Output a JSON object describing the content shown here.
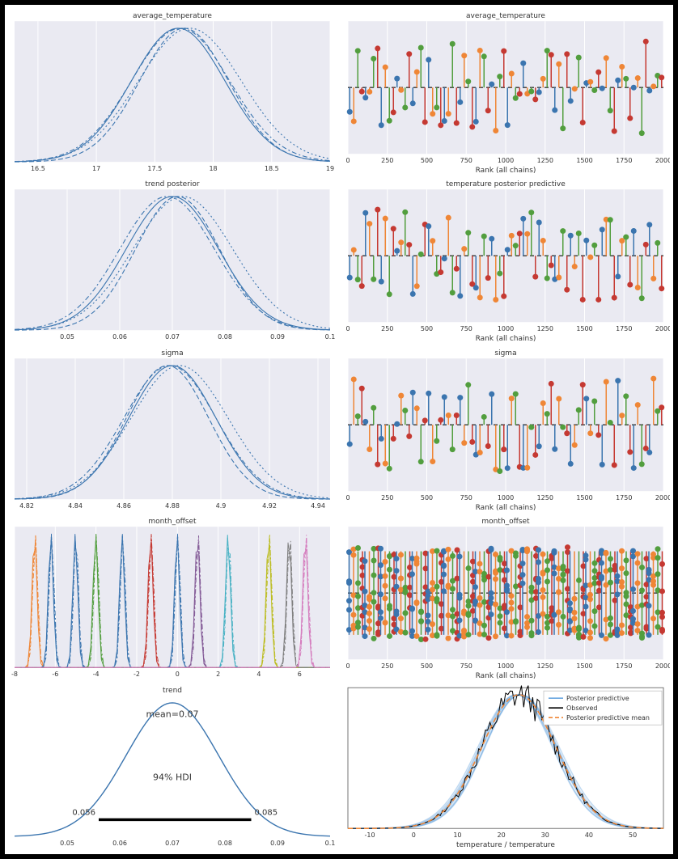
{
  "global": {
    "font_family": "DejaVu Sans, Arial, sans-serif",
    "title_fontsize": 9,
    "tick_fontsize": 8,
    "axis_label_fontsize": 9,
    "plot_bg": "#eaeaf2",
    "plain_bg": "#ffffff",
    "grid_color": "#ffffff",
    "tick_color": "#333333",
    "text_color": "#333333"
  },
  "kde_colors": {
    "solid": "#3b75af",
    "dashed": "#3b75af",
    "dotted": "#3b75af",
    "dashdot": "#3b75af"
  },
  "kde_avg_temp": {
    "title": "average_temperature",
    "xlim": [
      16.3,
      19.0
    ],
    "xticks": [
      16.5,
      17.0,
      17.5,
      18.0,
      18.5,
      19.0
    ],
    "mu": [
      17.7,
      17.75,
      17.8,
      17.72
    ],
    "sigma": [
      0.4,
      0.38,
      0.44,
      0.42
    ]
  },
  "kde_trend": {
    "title": "trend posterior",
    "xlim": [
      0.04,
      0.1
    ],
    "xticks": [
      0.05,
      0.06,
      0.07,
      0.08,
      0.09,
      0.1
    ],
    "mu": [
      0.07,
      0.071,
      0.072,
      0.069
    ],
    "sigma": [
      0.0088,
      0.008,
      0.0095,
      0.009
    ]
  },
  "kde_sigma": {
    "title": "sigma",
    "xlim": [
      4.815,
      4.945
    ],
    "xticks": [
      4.82,
      4.84,
      4.86,
      4.88,
      4.9,
      4.92,
      4.94
    ],
    "mu": [
      4.88,
      4.878,
      4.883,
      4.879
    ],
    "sigma": [
      0.018,
      0.017,
      0.02,
      0.019
    ]
  },
  "month_offset": {
    "title": "month_offset",
    "xlim": [
      -8,
      7.5
    ],
    "xticks": [
      -8,
      -6,
      -4,
      -2,
      0,
      2,
      4,
      6
    ],
    "peaks": [
      {
        "mu": -7.0,
        "color": "#ef8636",
        "sigma": 0.12
      },
      {
        "mu": -6.2,
        "color": "#3b75af",
        "sigma": 0.12
      },
      {
        "mu": -5.0,
        "color": "#3b75af",
        "sigma": 0.12
      },
      {
        "mu": -4.0,
        "color": "#529e3e",
        "sigma": 0.12
      },
      {
        "mu": -2.7,
        "color": "#3b75af",
        "sigma": 0.12
      },
      {
        "mu": -1.3,
        "color": "#c53932",
        "sigma": 0.12
      },
      {
        "mu": 0.0,
        "color": "#3b75af",
        "sigma": 0.12
      },
      {
        "mu": 1.0,
        "color": "#845b97",
        "sigma": 0.12
      },
      {
        "mu": 2.5,
        "color": "#46b1c3",
        "sigma": 0.12
      },
      {
        "mu": 4.5,
        "color": "#bcbd22",
        "sigma": 0.12
      },
      {
        "mu": 5.5,
        "color": "#7f7f7f",
        "sigma": 0.12
      },
      {
        "mu": 6.3,
        "color": "#d57dbe",
        "sigma": 0.12
      }
    ]
  },
  "rank": {
    "xlim": [
      0,
      2000
    ],
    "xticks": [
      0,
      250,
      500,
      750,
      1000,
      1250,
      1500,
      1750,
      2000
    ],
    "xlabel": "Rank (all chains)",
    "colors": [
      "#3b75af",
      "#ef8636",
      "#529e3e",
      "#c53932"
    ],
    "marker_radius": 3.5,
    "line_width": 1.5,
    "baseline_color": "#333333",
    "titles": {
      "r1": "average_temperature",
      "r2": "temperature posterior predictive",
      "r3": "sigma",
      "r4": "month_offset"
    }
  },
  "hdi": {
    "title": "trend",
    "xlim": [
      0.04,
      0.1
    ],
    "xticks": [
      0.05,
      0.06,
      0.07,
      0.08,
      0.09,
      0.1
    ],
    "mu": 0.07,
    "sigma": 0.0088,
    "mean_label": "mean=0.07",
    "hdi_label": "94% HDI",
    "hdi_low": 0.056,
    "hdi_high": 0.085,
    "hdi_low_label": "0.056",
    "hdi_high_label": "0.085",
    "line_color": "#3b75af",
    "bar_color": "#000000"
  },
  "ppc": {
    "xlim": [
      -15,
      57
    ],
    "xticks": [
      -10,
      0,
      10,
      20,
      30,
      40,
      50
    ],
    "xlabel": "temperature / temperature",
    "mu": 24,
    "sigma": 8.5,
    "legend": [
      "Posterior predictive",
      "Observed",
      "Posterior predictive mean"
    ],
    "posterior_color": "#6aa6e0",
    "posterior_alpha": 0.25,
    "observed_color": "#000000",
    "mean_color": "#ef8636",
    "n_posterior_lines": 18,
    "observed_noise": 0.12
  }
}
